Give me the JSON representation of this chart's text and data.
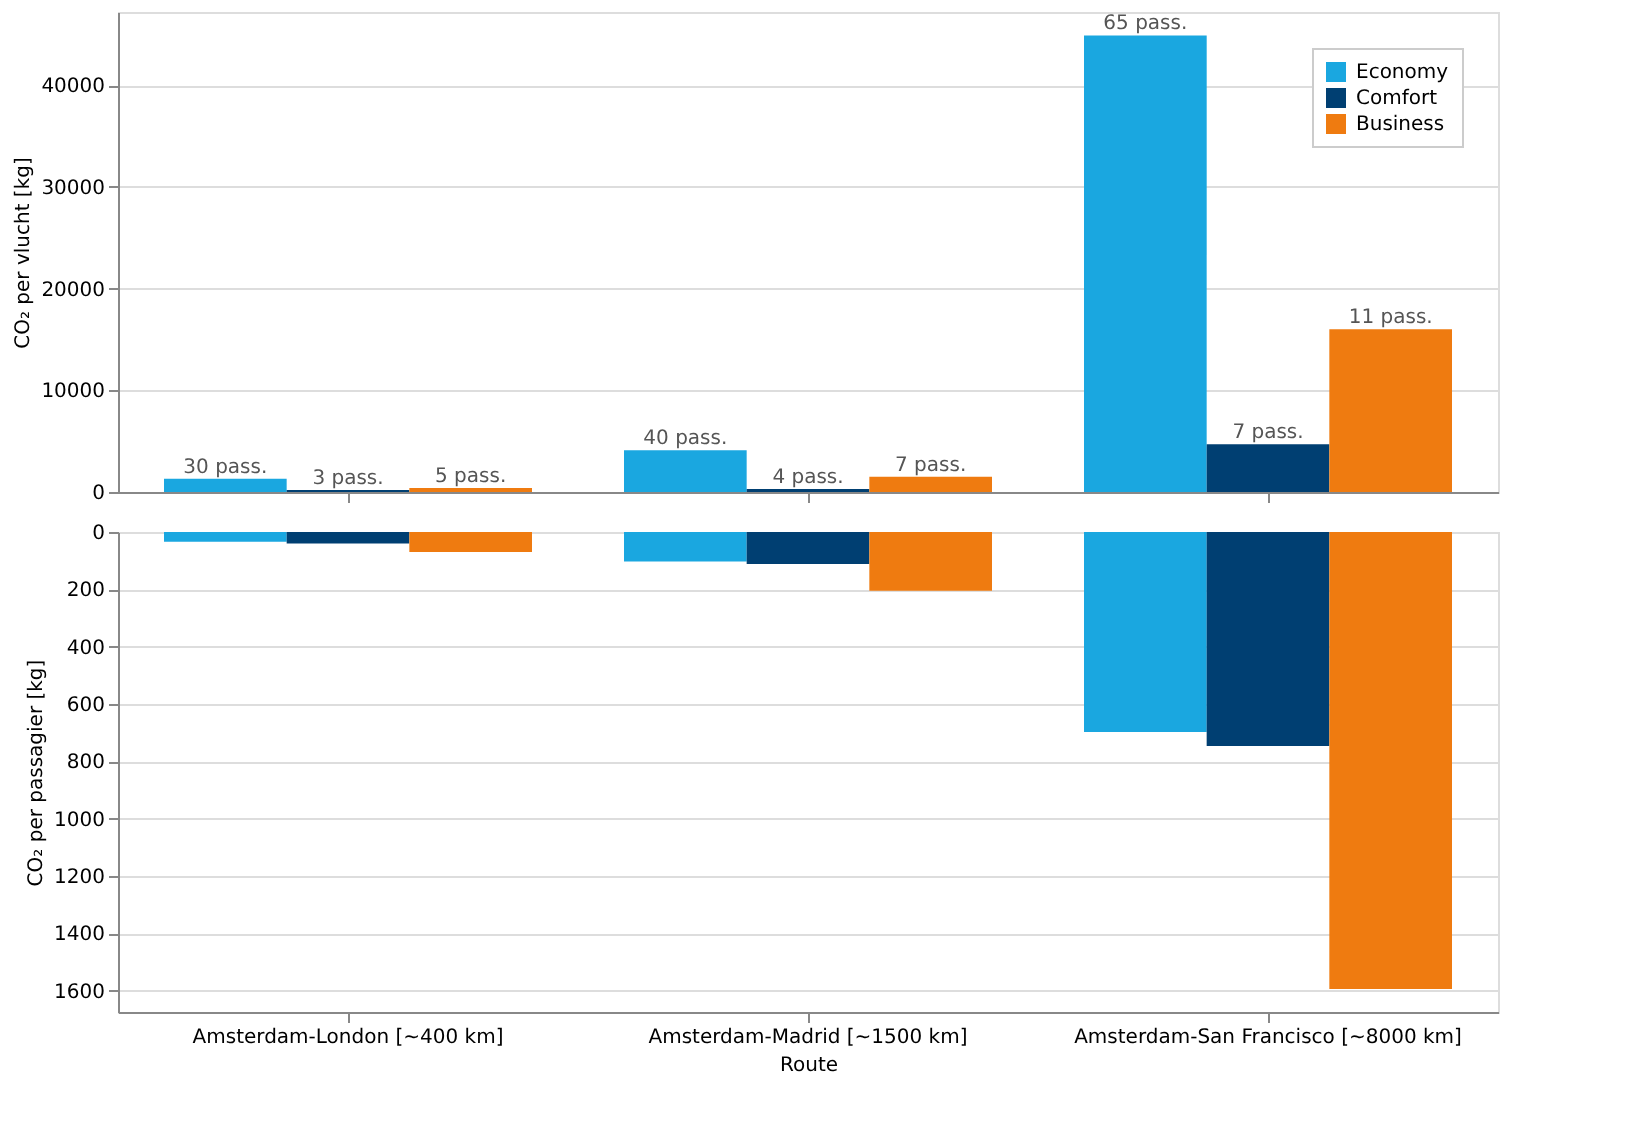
{
  "chart_data": [
    {
      "type": "bar",
      "ylabel": "CO₂ per vlucht [kg]",
      "categories": [
        null,
        null,
        null
      ],
      "series": [
        {
          "name": "Economy",
          "color": "#1aa7e0",
          "values": [
            1300,
            4100,
            44900
          ]
        },
        {
          "name": "Comfort",
          "color": "#003f72",
          "values": [
            200,
            300,
            4700
          ]
        },
        {
          "name": "Business",
          "color": "#ef7b10",
          "values": [
            400,
            1500,
            16000
          ]
        }
      ],
      "annotations": [
        "30 pass.",
        "3 pass.",
        "5 pass.",
        "40 pass.",
        "4 pass.",
        "7 pass.",
        "65 pass.",
        "7 pass.",
        "11 pass."
      ],
      "ylim": [
        0,
        47200
      ],
      "yticks": [
        0,
        10000,
        20000,
        30000,
        40000
      ],
      "grid": "y",
      "legend": "top right",
      "tick_labels": "y"
    },
    {
      "type": "bar",
      "xlabel": "Route",
      "ylabel": "CO₂ per passagier [kg]",
      "categories": [
        "Amsterdam-London [~400 km]",
        "Amsterdam-Madrid [~1500 km]",
        "Amsterdam-San Francisco [~8000 km]"
      ],
      "series": [
        {
          "color": "#1aa7e0",
          "values": [
            34,
            103,
            698
          ]
        },
        {
          "color": "#003f72",
          "values": [
            40,
            112,
            747
          ]
        },
        {
          "color": "#ef7b10",
          "values": [
            70,
            205,
            1595
          ]
        }
      ],
      "ylim": [
        1675,
        0
      ],
      "yticks": [
        0,
        200,
        400,
        600,
        800,
        1000,
        1200,
        1400,
        1600
      ],
      "grid": "y"
    }
  ]
}
